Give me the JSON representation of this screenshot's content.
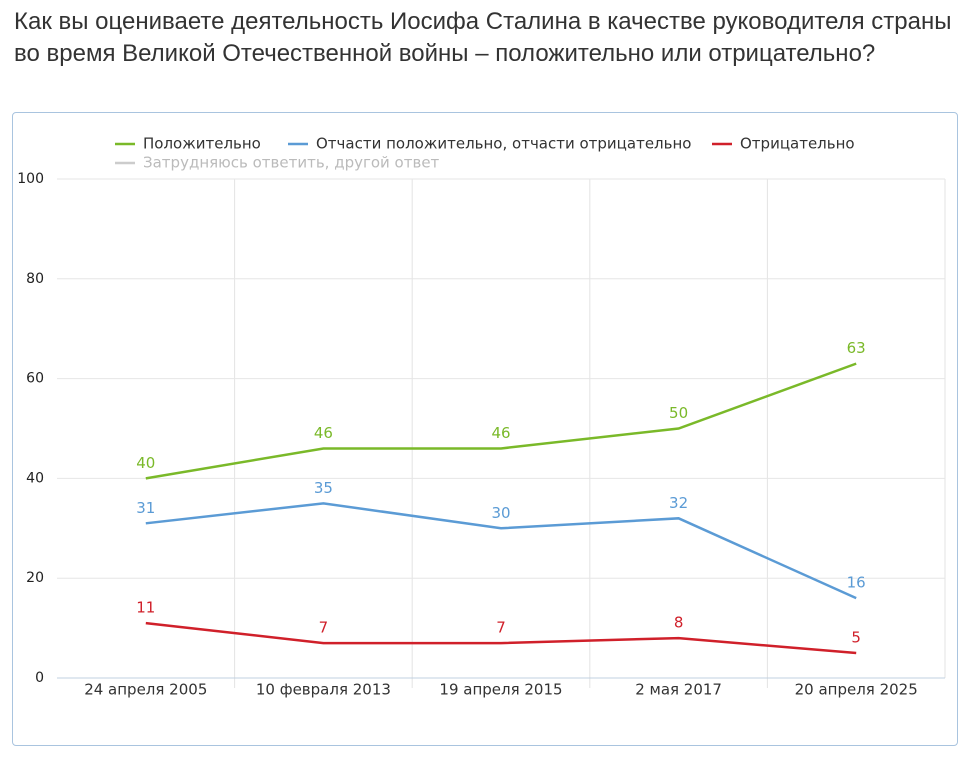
{
  "chart_data": {
    "type": "line",
    "title": "Как вы оцениваете деятельность Иосифа Сталина в качестве руководителя страны во время Великой Отечественной войны – положительно или отрицательно?",
    "categories": [
      "24 апреля 2005",
      "10 февраля 2013",
      "19 апреля 2015",
      "2 мая 2017",
      "20 апреля 2025"
    ],
    "series": [
      {
        "name": "Положительно",
        "color": "#7ab929",
        "values": [
          40,
          46,
          46,
          50,
          63
        ]
      },
      {
        "name": "Отчасти положительно, отчасти отрицательно",
        "color": "#5b9bd5",
        "values": [
          31,
          35,
          30,
          32,
          16
        ]
      },
      {
        "name": "Отрицательно",
        "color": "#d0202a",
        "values": [
          11,
          7,
          7,
          8,
          5
        ]
      },
      {
        "name": "Затрудняюсь ответить, другой ответ",
        "color": "#cccccc",
        "values": [
          null,
          null,
          null,
          null,
          null
        ],
        "hidden": true
      }
    ],
    "ylim": [
      0,
      100
    ],
    "yticks": [
      0,
      20,
      40,
      60,
      80,
      100
    ],
    "grid": true
  }
}
